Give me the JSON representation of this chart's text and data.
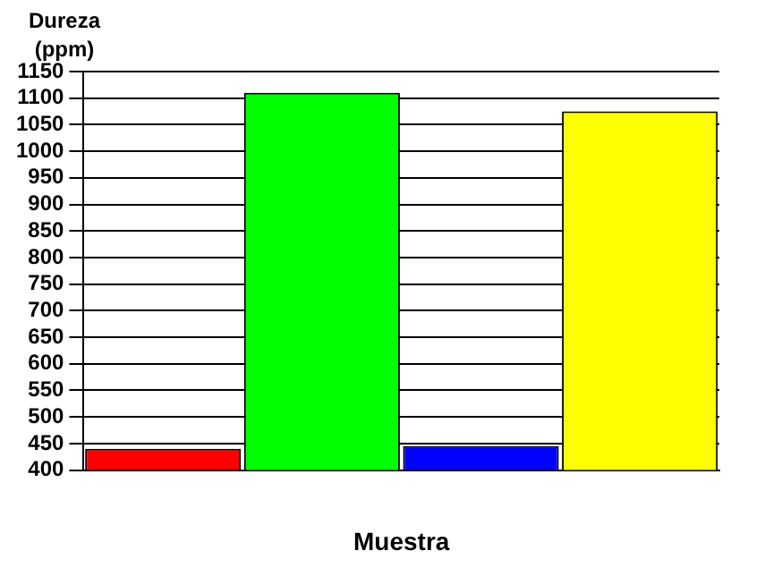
{
  "chart_data": {
    "type": "bar",
    "ylabel": "Dureza (ppm)",
    "xlabel": "Muestra",
    "categories": [
      null,
      null,
      null,
      null
    ],
    "values": [
      440,
      1110,
      445,
      1075
    ],
    "colors": [
      "#ff0000",
      "#00ff00",
      "#0000ff",
      "#ffff00"
    ],
    "ylim": [
      400,
      1150
    ],
    "yticks": [
      400,
      450,
      500,
      550,
      600,
      650,
      700,
      750,
      800,
      850,
      900,
      950,
      1000,
      1050,
      1100,
      1150
    ],
    "grid": "y",
    "legend": false
  }
}
